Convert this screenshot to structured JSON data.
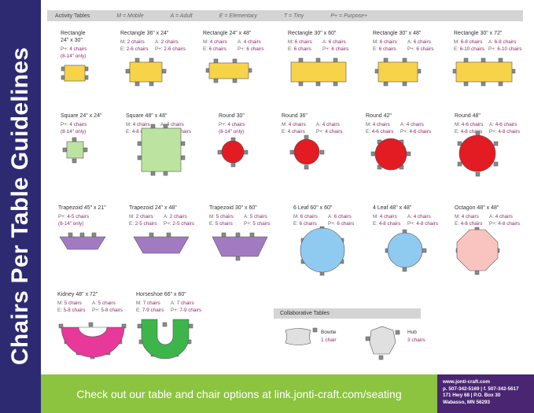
{
  "title": "Chairs Per Table Guidelines",
  "header": {
    "label": "Activity Tables",
    "legend": [
      "M = Mobile",
      "A = Adult",
      "E = Elementary",
      "T = Tiny",
      "P+ = Purpose+"
    ]
  },
  "tables": [
    {
      "name": "Rectangle 24\" x 30\"",
      "lines": [
        [
          "P+:",
          "4 chairs"
        ]
      ],
      "note": "(8-14\" only)"
    },
    {
      "name": "Rectangle 36\" x 24\"",
      "lines": [
        [
          "M:",
          "2 chairs",
          "A:",
          "2 chairs"
        ],
        [
          "E:",
          "2-6 chairs",
          "P+:",
          "2-6 chairs"
        ]
      ]
    },
    {
      "name": "Rectangle 24\" x 48\"",
      "lines": [
        [
          "M:",
          "4 chairs",
          "A:",
          "4 chairs"
        ],
        [
          "E:",
          "6 chairs",
          "P+:",
          "6 chairs"
        ]
      ]
    },
    {
      "name": "Rectangle 30\" x 60\"",
      "lines": [
        [
          "M:",
          "6 chairs",
          "A:",
          "6 chairs"
        ],
        [
          "E:",
          "6 chairs",
          "P+:",
          "6 chairs"
        ]
      ]
    },
    {
      "name": "Rectangle 30\" x 48\"",
      "lines": [
        [
          "M:",
          "6 chairs",
          "A:",
          "6 chairs"
        ],
        [
          "E:",
          "6 chairs",
          "P+:",
          "6 chairs"
        ]
      ]
    },
    {
      "name": "Rectangle 30\" x 72\"",
      "lines": [
        [
          "M:",
          "6-8 chairs",
          "A:",
          "6-8 chairs"
        ],
        [
          "E:",
          "6-10 chairs",
          "P+:",
          "6-10 chairs"
        ]
      ]
    },
    {
      "name": "Square 24\" x 24\"",
      "lines": [
        [
          "P+:",
          "4 chairs"
        ]
      ],
      "note": "(8-14\" only)"
    },
    {
      "name": "Square 48\" x 48\"",
      "lines": [
        [
          "M:",
          "4 chairs",
          "A:",
          "4 chairs"
        ],
        [
          "E:",
          "4-8 chairs",
          "P+:",
          "4-8 chairs"
        ]
      ]
    },
    {
      "name": "Round 30\"",
      "lines": [
        [
          "P+:",
          "4 chairs"
        ]
      ],
      "note": "(8-14\" only)"
    },
    {
      "name": "Round 36\"",
      "lines": [
        [
          "M:",
          "4 chairs",
          "A:",
          "4 chairs"
        ],
        [
          "E:",
          "4 chairs",
          "P+:",
          "4 chairs"
        ]
      ]
    },
    {
      "name": "Round 42\"",
      "lines": [
        [
          "M:",
          "4 chairs",
          "A:",
          "4 chairs"
        ],
        [
          "E:",
          "4-6 chairs",
          "P+:",
          "4-6 chairs"
        ]
      ]
    },
    {
      "name": "Round 48\"",
      "lines": [
        [
          "M:",
          "4-6 chairs",
          "A:",
          "4-6 chairs"
        ],
        [
          "E:",
          "4-8 chairs",
          "P+:",
          "4-8 chairs"
        ]
      ]
    },
    {
      "name": "Trapezoid 45\" x 21\"",
      "lines": [
        [
          "P+:",
          "4-5 chairs"
        ]
      ],
      "note": "(8-14\" only)"
    },
    {
      "name": "Trapezoid 24\" x 48\"",
      "lines": [
        [
          "M:",
          "2 chairs",
          "A:",
          "2 chairs"
        ],
        [
          "E:",
          "2-5 chairs",
          "P+:",
          "2-5 chairs"
        ]
      ]
    },
    {
      "name": "Trapezoid 30\" x 60\"",
      "lines": [
        [
          "M:",
          "5 chairs",
          "A:",
          "5 chairs"
        ],
        [
          "E:",
          "5 chairs",
          "P+:",
          "5 chairs"
        ]
      ]
    },
    {
      "name": "6 Leaf 60\" x 60\"",
      "lines": [
        [
          "M:",
          "6 chairs",
          "A:",
          "6 chairs"
        ],
        [
          "E:",
          "6 chairs",
          "P+:",
          "6 chairs"
        ]
      ]
    },
    {
      "name": "4 Leaf 48\" x 48\"",
      "lines": [
        [
          "M:",
          "4 chairs",
          "A:",
          "4 chairs"
        ],
        [
          "E:",
          "4-8 chairs",
          "P+:",
          "4-8 chairs"
        ]
      ]
    },
    {
      "name": "Octagon 48\" x 48\"",
      "lines": [
        [
          "M:",
          "4 chairs",
          "A:",
          "4 chairs"
        ],
        [
          "E:",
          "4-8 chairs",
          "P+:",
          "4-8 chairs"
        ]
      ]
    },
    {
      "name": "Kidney 48\" x 72\"",
      "lines": [
        [
          "M:",
          "5 chairs",
          "A:",
          "5 chairs"
        ],
        [
          "E:",
          "5-8 chairs",
          "P+:",
          "5-8 chairs"
        ]
      ]
    },
    {
      "name": "Horseshoe 66\" x 60\"",
      "lines": [
        [
          "M:",
          "7 chairs",
          "A:",
          "7 chairs"
        ],
        [
          "E:",
          "7-9 chairs",
          "P+:",
          "7-9 chairs"
        ]
      ]
    }
  ],
  "collaborative": {
    "label": "Collaborative Tables",
    "items": [
      {
        "name": "Bowtie",
        "chairs": "1 chair"
      },
      {
        "name": "Hub",
        "chairs": "3 chairs"
      }
    ]
  },
  "footer": {
    "cta": "Check out our table and chair options at link.jonti-craft.com/seating",
    "contact": [
      "www.jonti-craft.com",
      "p. 507-342-5169  |  f. 507-342-5617",
      "171 Hwy 68  |  P.O. Box 30",
      "Wabasso, MN 56293"
    ]
  },
  "colors": {
    "band": "#2e2a72",
    "accent": "#8a2a6e",
    "footer_green": "#8cc43f",
    "footer_purple": "#4a2572"
  }
}
